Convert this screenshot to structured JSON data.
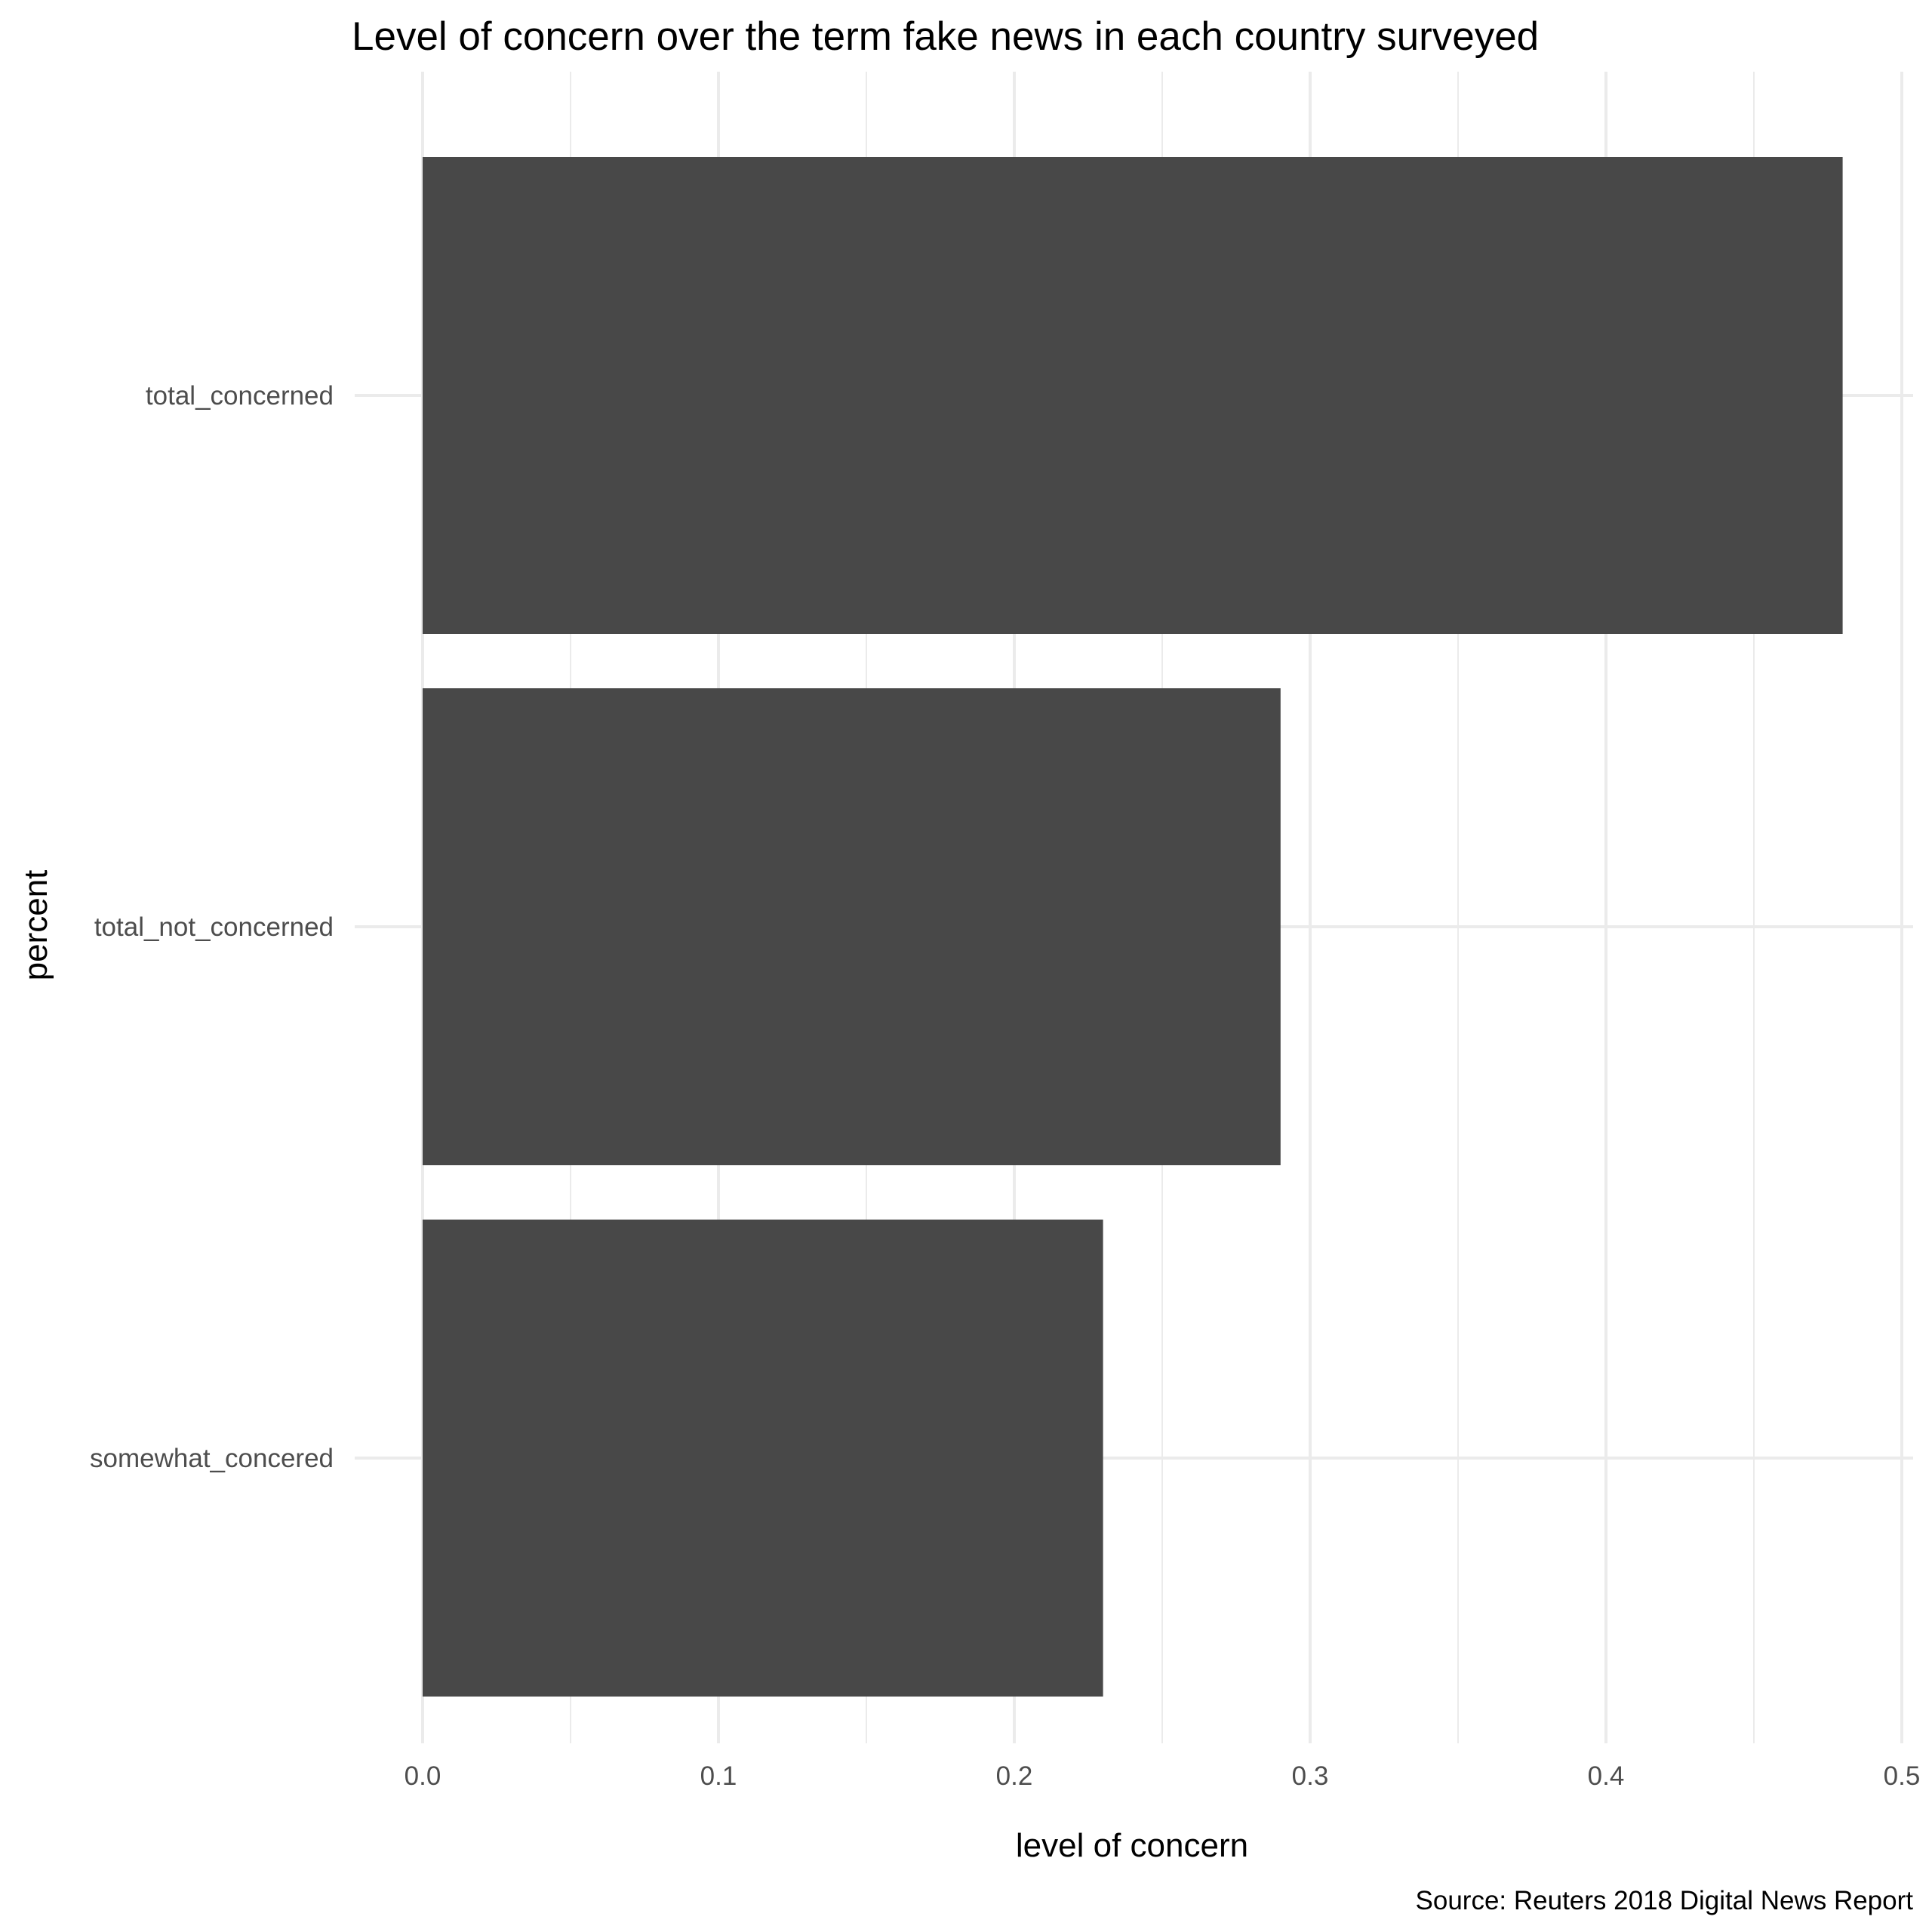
{
  "chart_data": {
    "type": "bar",
    "orientation": "horizontal",
    "title": "Level of concern over the term fake news in each country surveyed",
    "xlabel": "level of concern",
    "ylabel": "percent",
    "caption": "Source: Reuters 2018 Digital News Report",
    "categories": [
      "total_concerned",
      "total_not_concerned",
      "somewhat_concered"
    ],
    "values": [
      0.48,
      0.29,
      0.23
    ],
    "xlim": [
      0,
      0.5
    ],
    "xticks": [
      0.0,
      0.1,
      0.2,
      0.3,
      0.4,
      0.5
    ],
    "xtick_labels": [
      "0.0",
      "0.1",
      "0.2",
      "0.3",
      "0.4",
      "0.5"
    ],
    "grid": true,
    "legend": "none",
    "bar_color": "#484848",
    "grid_color": "#ebebeb"
  }
}
